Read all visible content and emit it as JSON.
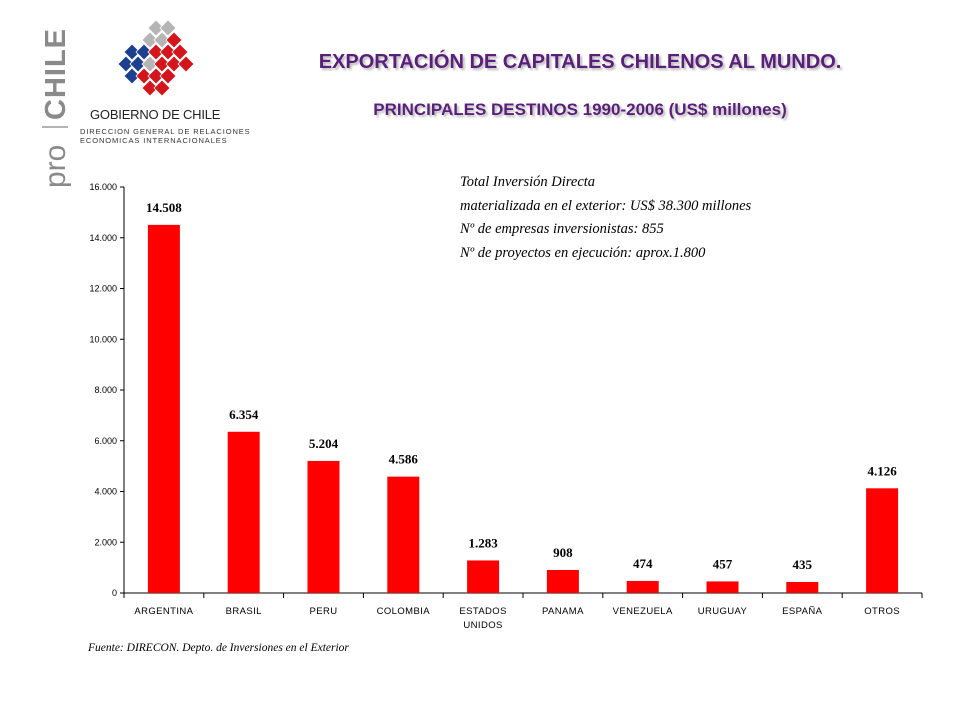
{
  "header": {
    "brand_pro": "pro",
    "brand_chile": "CHILE",
    "gov_name": "GOBIERNO DE CHILE",
    "gov_dept_line1": "DIRECCION GENERAL DE RELACIONES",
    "gov_dept_line2": "ECONOMICAS INTERNACIONALES",
    "title": "EXPORTACIÓN DE CAPITALES CHILENOS AL MUNDO.",
    "subtitle": "PRINCIPALES DESTINOS 1990-2006 (US$ millones)"
  },
  "note": {
    "line1": "Total Inversión Directa",
    "line2": "materializada en el exterior:    US$ 38.300 millones",
    "line3": "Nº de empresas inversionistas: 855",
    "line4": "Nº de proyectos en ejecución:  aprox.1.800"
  },
  "source": "Fuente: DIRECON. Depto. de Inversiones en el Exterior",
  "colors": {
    "bar": "#ff0000",
    "title": "#5a1f7a",
    "logo_red": "#d4161c",
    "logo_blue": "#1c3f8f",
    "logo_gray": "#b5b5b5"
  },
  "chart_data": {
    "type": "bar",
    "title": "PRINCIPALES DESTINOS 1990-2006 (US$ millones)",
    "xlabel": "",
    "ylabel": "",
    "categories": [
      "ARGENTINA",
      "BRASIL",
      "PERU",
      "COLOMBIA",
      "ESTADOS UNIDOS",
      "PANAMA",
      "VENEZUELA",
      "URUGUAY",
      "ESPAÑA",
      "OTROS"
    ],
    "category_lines": [
      [
        "ARGENTINA"
      ],
      [
        "BRASIL"
      ],
      [
        "PERU"
      ],
      [
        "COLOMBIA"
      ],
      [
        "ESTADOS",
        "UNIDOS"
      ],
      [
        "PANAMA"
      ],
      [
        "VENEZUELA"
      ],
      [
        "URUGUAY"
      ],
      [
        "ESPAÑA"
      ],
      [
        "OTROS"
      ]
    ],
    "values": [
      14508,
      6354,
      5204,
      4586,
      1283,
      908,
      474,
      457,
      435,
      4126
    ],
    "data_labels": [
      "14.508",
      "6.354",
      "5.204",
      "4.586",
      "1.283",
      "908",
      "474",
      "457",
      "435",
      "4.126"
    ],
    "ylim": [
      0,
      16000
    ],
    "yticks": [
      0,
      2000,
      4000,
      6000,
      8000,
      10000,
      12000,
      14000,
      16000
    ],
    "ytick_labels": [
      "0",
      "2.000",
      "4.000",
      "6.000",
      "8.000",
      "10.000",
      "12.000",
      "14.000",
      "16.000"
    ],
    "grid": false,
    "legend": "none"
  }
}
